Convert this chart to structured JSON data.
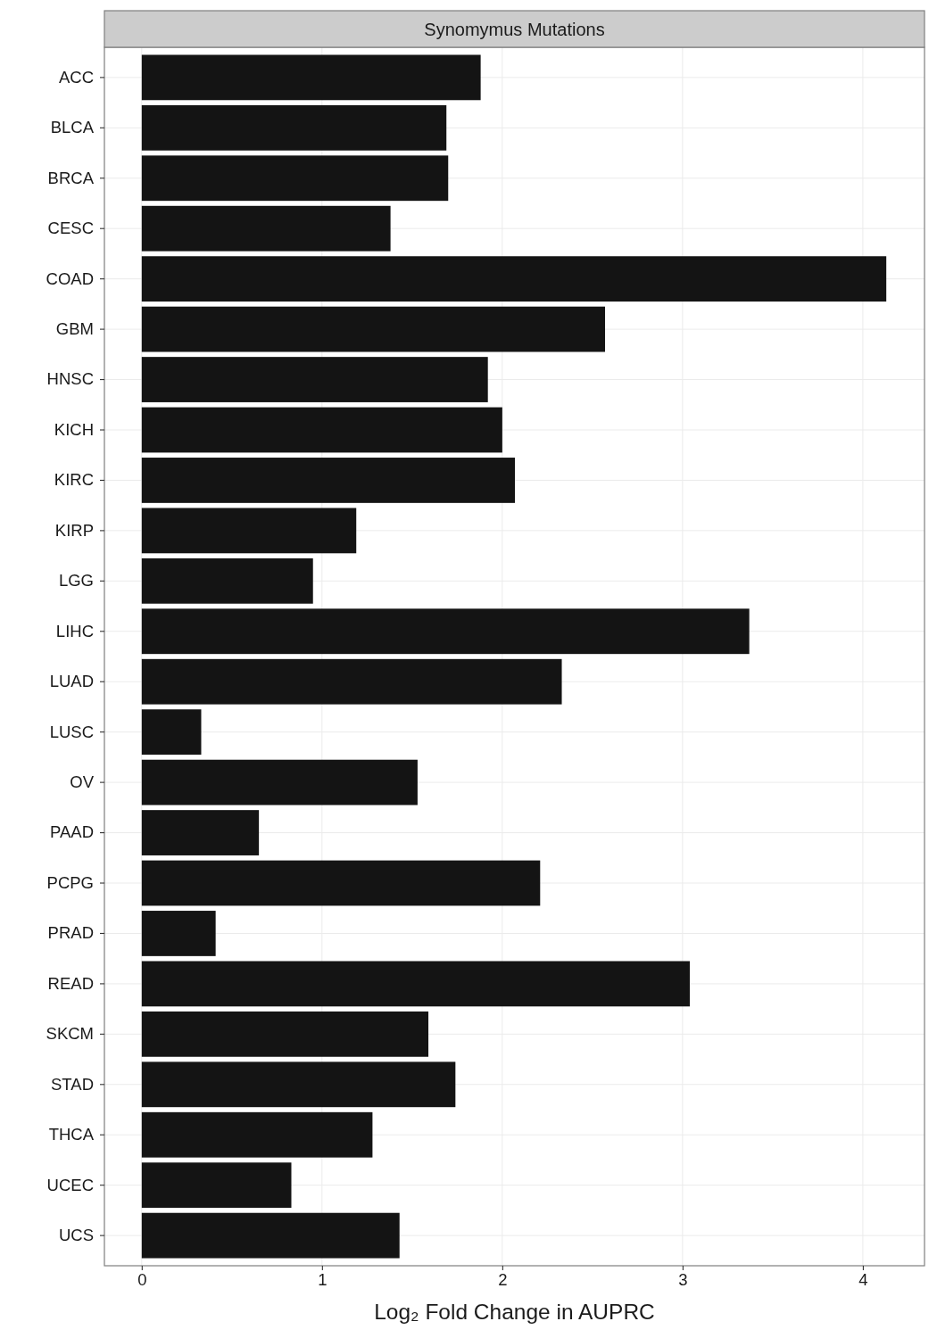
{
  "chart_data": {
    "type": "bar",
    "orientation": "horizontal",
    "title": "Synomymus Mutations",
    "xlabel": "Log₂ Fold Change in AUPRC",
    "categories": [
      "ACC",
      "BLCA",
      "BRCA",
      "CESC",
      "COAD",
      "GBM",
      "HNSC",
      "KICH",
      "KIRC",
      "KIRP",
      "LGG",
      "LIHC",
      "LUAD",
      "LUSC",
      "OV",
      "PAAD",
      "PCPG",
      "PRAD",
      "READ",
      "SKCM",
      "STAD",
      "THCA",
      "UCEC",
      "UCS"
    ],
    "values": [
      1.88,
      1.69,
      1.7,
      1.38,
      4.13,
      2.57,
      1.92,
      2.0,
      2.07,
      1.19,
      0.95,
      3.37,
      2.33,
      0.33,
      1.53,
      0.65,
      2.21,
      0.41,
      3.04,
      1.59,
      1.74,
      1.28,
      0.83,
      1.43
    ],
    "color": "#141414",
    "xlim": [
      -0.207,
      4.342
    ],
    "xticks": [
      0,
      1,
      2,
      3,
      4
    ],
    "grid": true
  }
}
